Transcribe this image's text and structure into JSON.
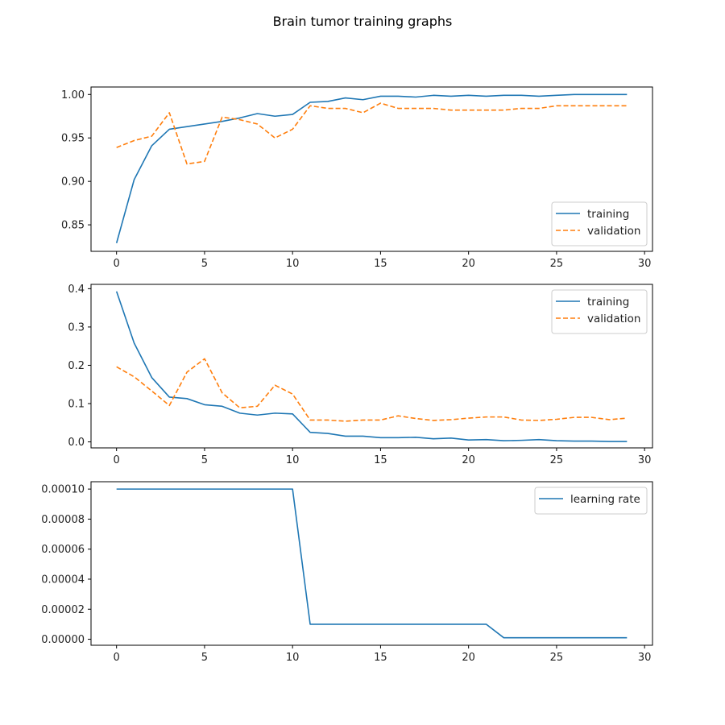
{
  "figure_title": "Brain tumor training graphs",
  "colors": {
    "training": "#1f77b4",
    "validation": "#ff7f0e",
    "frame": "#000000",
    "legend_border": "#cccccc"
  },
  "chart_data": [
    {
      "type": "line",
      "title": "",
      "xlabel": "",
      "ylabel": "",
      "x": [
        0,
        1,
        2,
        3,
        4,
        5,
        6,
        7,
        8,
        9,
        10,
        11,
        12,
        13,
        14,
        15,
        16,
        17,
        18,
        19,
        20,
        21,
        22,
        23,
        24,
        25,
        26,
        27,
        28,
        29
      ],
      "xlim": [
        -1.45,
        30.45
      ],
      "ylim": [
        0.8195,
        1.0086
      ],
      "xticks": [
        0,
        5,
        10,
        15,
        20,
        25,
        30
      ],
      "yticks": [
        0.85,
        0.9,
        0.95,
        1.0
      ],
      "ytick_labels": [
        "0.85",
        "0.90",
        "0.95",
        "1.00"
      ],
      "legend_position": "lower-right",
      "series": [
        {
          "name": "training",
          "style": "solid",
          "values": [
            0.829,
            0.902,
            0.941,
            0.96,
            0.963,
            0.966,
            0.969,
            0.973,
            0.978,
            0.975,
            0.977,
            0.991,
            0.992,
            0.996,
            0.994,
            0.998,
            0.998,
            0.997,
            0.999,
            0.998,
            0.999,
            0.998,
            0.999,
            0.999,
            0.998,
            0.999,
            1.0,
            1.0,
            1.0,
            1.0
          ]
        },
        {
          "name": "validation",
          "style": "dashed",
          "values": [
            0.939,
            0.947,
            0.952,
            0.979,
            0.92,
            0.923,
            0.974,
            0.971,
            0.966,
            0.95,
            0.96,
            0.987,
            0.984,
            0.984,
            0.979,
            0.99,
            0.984,
            0.984,
            0.984,
            0.982,
            0.982,
            0.982,
            0.982,
            0.984,
            0.984,
            0.987,
            0.987,
            0.987,
            0.987,
            0.987
          ]
        }
      ]
    },
    {
      "type": "line",
      "title": "",
      "xlabel": "",
      "ylabel": "",
      "x": [
        0,
        1,
        2,
        3,
        4,
        5,
        6,
        7,
        8,
        9,
        10,
        11,
        12,
        13,
        14,
        15,
        16,
        17,
        18,
        19,
        20,
        21,
        22,
        23,
        24,
        25,
        26,
        27,
        28,
        29
      ],
      "xlim": [
        -1.45,
        30.45
      ],
      "ylim": [
        -0.0157,
        0.4113
      ],
      "xticks": [
        0,
        5,
        10,
        15,
        20,
        25,
        30
      ],
      "yticks": [
        0.0,
        0.1,
        0.2,
        0.3,
        0.4
      ],
      "ytick_labels": [
        "0.0",
        "0.1",
        "0.2",
        "0.3",
        "0.4"
      ],
      "legend_position": "upper-right",
      "series": [
        {
          "name": "training",
          "style": "solid",
          "values": [
            0.393,
            0.258,
            0.168,
            0.117,
            0.113,
            0.097,
            0.093,
            0.075,
            0.07,
            0.075,
            0.073,
            0.025,
            0.022,
            0.015,
            0.015,
            0.011,
            0.011,
            0.012,
            0.008,
            0.01,
            0.005,
            0.006,
            0.003,
            0.004,
            0.006,
            0.003,
            0.002,
            0.002,
            0.001,
            0.001
          ]
        },
        {
          "name": "validation",
          "style": "dashed",
          "values": [
            0.196,
            0.17,
            0.133,
            0.095,
            0.182,
            0.217,
            0.128,
            0.089,
            0.093,
            0.148,
            0.125,
            0.057,
            0.057,
            0.054,
            0.057,
            0.057,
            0.068,
            0.061,
            0.056,
            0.058,
            0.062,
            0.065,
            0.065,
            0.057,
            0.056,
            0.059,
            0.064,
            0.064,
            0.058,
            0.062
          ]
        }
      ]
    },
    {
      "type": "line",
      "title": "",
      "xlabel": "",
      "ylabel": "",
      "x": [
        0,
        1,
        2,
        3,
        4,
        5,
        6,
        7,
        8,
        9,
        10,
        11,
        12,
        13,
        14,
        15,
        16,
        17,
        18,
        19,
        20,
        21,
        22,
        23,
        24,
        25,
        26,
        27,
        28,
        29
      ],
      "xlim": [
        -1.45,
        30.45
      ],
      "ylim": [
        -4e-06,
        0.0001049
      ],
      "xticks": [
        0,
        5,
        10,
        15,
        20,
        25,
        30
      ],
      "yticks": [
        0.0,
        2e-05,
        4e-05,
        6e-05,
        8e-05,
        0.0001
      ],
      "ytick_labels": [
        "0.00000",
        "0.00002",
        "0.00004",
        "0.00006",
        "0.00008",
        "0.00010"
      ],
      "legend_position": "upper-right",
      "series": [
        {
          "name": "learning rate",
          "style": "solid",
          "values": [
            0.0001,
            0.0001,
            0.0001,
            0.0001,
            0.0001,
            0.0001,
            0.0001,
            0.0001,
            0.0001,
            0.0001,
            0.0001,
            1e-05,
            1e-05,
            1e-05,
            1e-05,
            1e-05,
            1e-05,
            1e-05,
            1e-05,
            1e-05,
            1e-05,
            1e-05,
            1e-06,
            1e-06,
            1e-06,
            1e-06,
            1e-06,
            1e-06,
            1e-06,
            1e-06
          ]
        }
      ]
    }
  ]
}
